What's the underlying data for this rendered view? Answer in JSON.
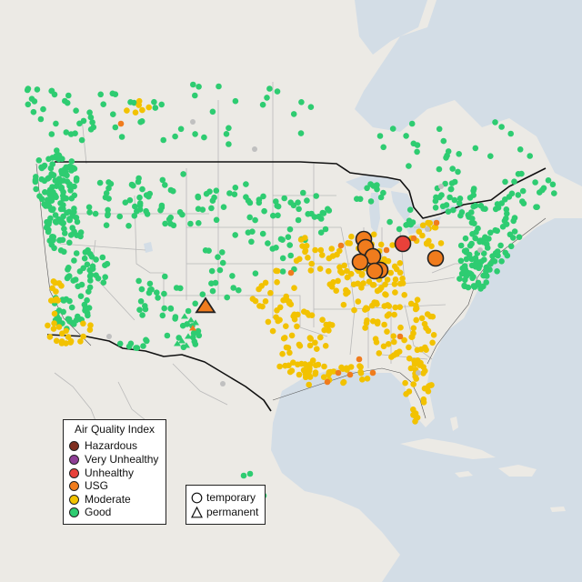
{
  "legend": {
    "title": "Air Quality Index",
    "categories": [
      {
        "label": "Hazardous",
        "color": "#7e2d1e"
      },
      {
        "label": "Very Unhealthy",
        "color": "#8f3f97"
      },
      {
        "label": "Unhealthy",
        "color": "#e8413a"
      },
      {
        "label": "USG",
        "color": "#f07c1d"
      },
      {
        "label": "Moderate",
        "color": "#f2c200"
      },
      {
        "label": "Good",
        "color": "#2ecc71"
      }
    ]
  },
  "shape_legend": {
    "items": [
      {
        "label": "temporary",
        "shape": "circle-icon"
      },
      {
        "label": "permanent",
        "shape": "triangle-icon"
      }
    ]
  },
  "colors": {
    "water": "#d3dde6",
    "land": "#eceae5",
    "state_lines": "#b9b9b9",
    "border": "#111111",
    "good": "#2ecc71",
    "moderate": "#f2c200",
    "usg": "#f07c1d",
    "unhealthy": "#e8413a",
    "no_data": "#c0c0c0"
  }
}
